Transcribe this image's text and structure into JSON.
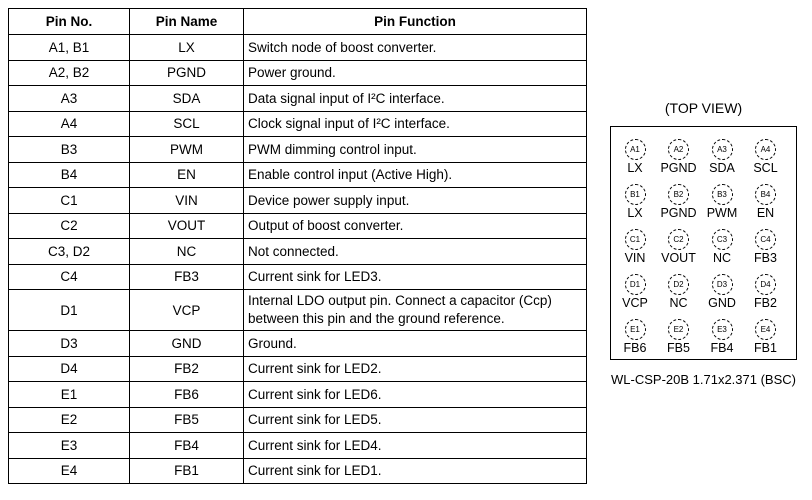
{
  "table": {
    "headers": [
      "Pin No.",
      "Pin Name",
      "Pin Function"
    ],
    "rows": [
      [
        "A1, B1",
        "LX",
        "Switch node of boost converter."
      ],
      [
        "A2, B2",
        "PGND",
        "Power ground."
      ],
      [
        "A3",
        "SDA",
        "Data signal input of I²C interface."
      ],
      [
        "A4",
        "SCL",
        "Clock signal input of I²C interface."
      ],
      [
        "B3",
        "PWM",
        "PWM dimming control input."
      ],
      [
        "B4",
        "EN",
        "Enable control input (Active High)."
      ],
      [
        "C1",
        "VIN",
        "Device power supply input."
      ],
      [
        "C2",
        "VOUT",
        "Output of boost converter."
      ],
      [
        "C3, D2",
        "NC",
        "Not connected."
      ],
      [
        "C4",
        "FB3",
        "Current sink for LED3."
      ],
      [
        "D1",
        "VCP",
        "Internal LDO output pin. Connect a capacitor (Ccp) between this pin and the ground reference."
      ],
      [
        "D3",
        "GND",
        "Ground."
      ],
      [
        "D4",
        "FB2",
        "Current sink for LED2."
      ],
      [
        "E1",
        "FB6",
        "Current sink for LED6."
      ],
      [
        "E2",
        "FB5",
        "Current sink for LED5."
      ],
      [
        "E3",
        "FB4",
        "Current sink for LED4."
      ],
      [
        "E4",
        "FB1",
        "Current sink for LED1."
      ]
    ]
  },
  "diagram": {
    "title": "(TOP VIEW)",
    "caption": "WL-CSP-20B 1.71x2.371 (BSC)",
    "balls": [
      [
        [
          "A1",
          "LX"
        ],
        [
          "A2",
          "PGND"
        ],
        [
          "A3",
          "SDA"
        ],
        [
          "A4",
          "SCL"
        ]
      ],
      [
        [
          "B1",
          "LX"
        ],
        [
          "B2",
          "PGND"
        ],
        [
          "B3",
          "PWM"
        ],
        [
          "B4",
          "EN"
        ]
      ],
      [
        [
          "C1",
          "VIN"
        ],
        [
          "C2",
          "VOUT"
        ],
        [
          "C3",
          "NC"
        ],
        [
          "C4",
          "FB3"
        ]
      ],
      [
        [
          "D1",
          "VCP"
        ],
        [
          "D2",
          "NC"
        ],
        [
          "D3",
          "GND"
        ],
        [
          "D4",
          "FB2"
        ]
      ],
      [
        [
          "E1",
          "FB6"
        ],
        [
          "E2",
          "FB5"
        ],
        [
          "E3",
          "FB4"
        ],
        [
          "E4",
          "FB1"
        ]
      ]
    ]
  }
}
